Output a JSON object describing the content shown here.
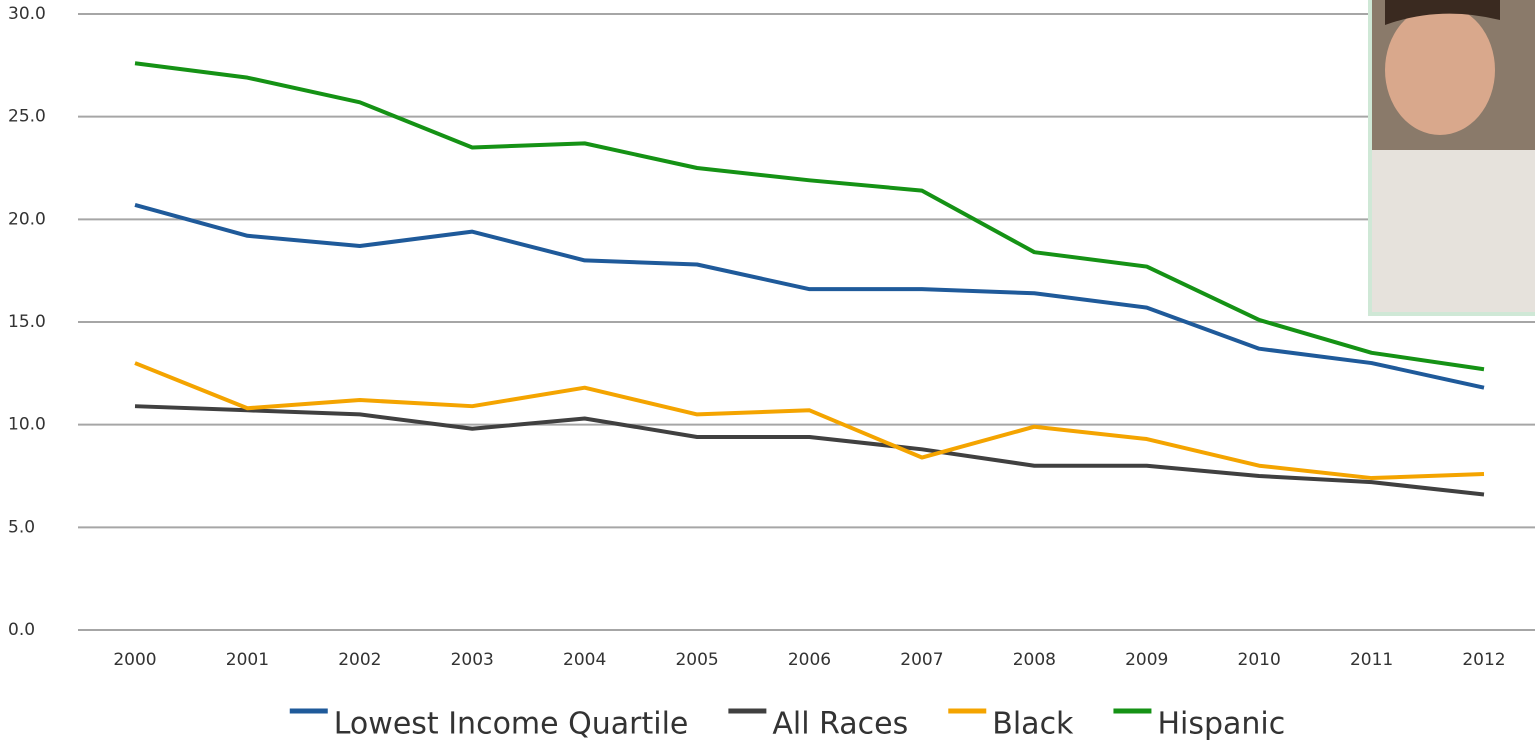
{
  "chart_data": {
    "type": "line",
    "categories": [
      "2000",
      "2001",
      "2002",
      "2003",
      "2004",
      "2005",
      "2006",
      "2007",
      "2008",
      "2009",
      "2010",
      "2011",
      "2012"
    ],
    "series": [
      {
        "name": "Lowest Income Quartile",
        "color": "#1f5a9a",
        "values": [
          20.7,
          19.2,
          18.7,
          19.4,
          18.0,
          17.8,
          16.6,
          16.6,
          16.4,
          15.7,
          13.7,
          13.0,
          11.8
        ]
      },
      {
        "name": "All Races",
        "color": "#404040",
        "values": [
          10.9,
          10.7,
          10.5,
          9.8,
          10.3,
          9.4,
          9.4,
          8.8,
          8.0,
          8.0,
          7.5,
          7.2,
          6.6
        ]
      },
      {
        "name": "Black",
        "color": "#f4a400",
        "values": [
          13.0,
          10.8,
          11.2,
          10.9,
          11.8,
          10.5,
          10.7,
          8.4,
          9.9,
          9.3,
          8.0,
          7.4,
          7.6
        ]
      },
      {
        "name": "Hispanic",
        "color": "#159215",
        "values": [
          27.6,
          26.9,
          25.7,
          23.5,
          23.7,
          22.5,
          21.9,
          21.4,
          18.4,
          17.7,
          15.1,
          13.5,
          12.7
        ]
      }
    ],
    "ylim": [
      0,
      30
    ],
    "yticks": [
      {
        "value": 0,
        "label": "0.0"
      },
      {
        "value": 5,
        "label": "5.0"
      },
      {
        "value": 10,
        "label": "10.0"
      },
      {
        "value": 15,
        "label": "15.0"
      },
      {
        "value": 20,
        "label": "20.0"
      },
      {
        "value": 25,
        "label": "25.0"
      },
      {
        "value": 30,
        "label": "30.0"
      }
    ],
    "grid": true,
    "legend": "bottom"
  }
}
